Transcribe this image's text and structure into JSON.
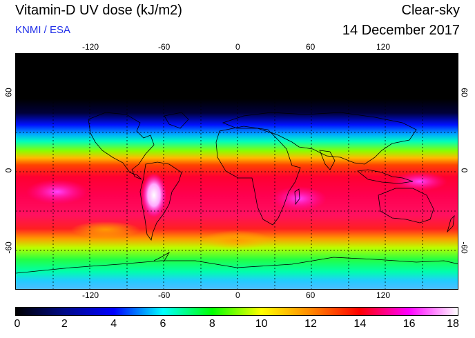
{
  "header": {
    "title": "Vitamin-D UV dose (kJ/m2)",
    "subtitle": "KNMI / ESA",
    "sky_condition": "Clear-sky",
    "date": "14 December 2017"
  },
  "map": {
    "longitude_ticks": [
      "-120",
      "-60",
      "0",
      "60",
      "120"
    ],
    "latitude_ticks_left": [
      "60",
      "0",
      "-60"
    ],
    "latitude_ticks_right": [
      "60",
      "0",
      "-60"
    ],
    "grid": "dotted, every 30 degrees"
  },
  "colorbar": {
    "ticks": [
      "0",
      "2",
      "4",
      "6",
      "8",
      "10",
      "12",
      "14",
      "16",
      "18"
    ],
    "min": 0,
    "max": 18,
    "colors": [
      "#000000",
      "#000a8a",
      "#0000ff",
      "#00ffff",
      "#00ff00",
      "#ffff00",
      "#ff8800",
      "#ff0000",
      "#ff00ff",
      "#ffffff"
    ]
  }
}
